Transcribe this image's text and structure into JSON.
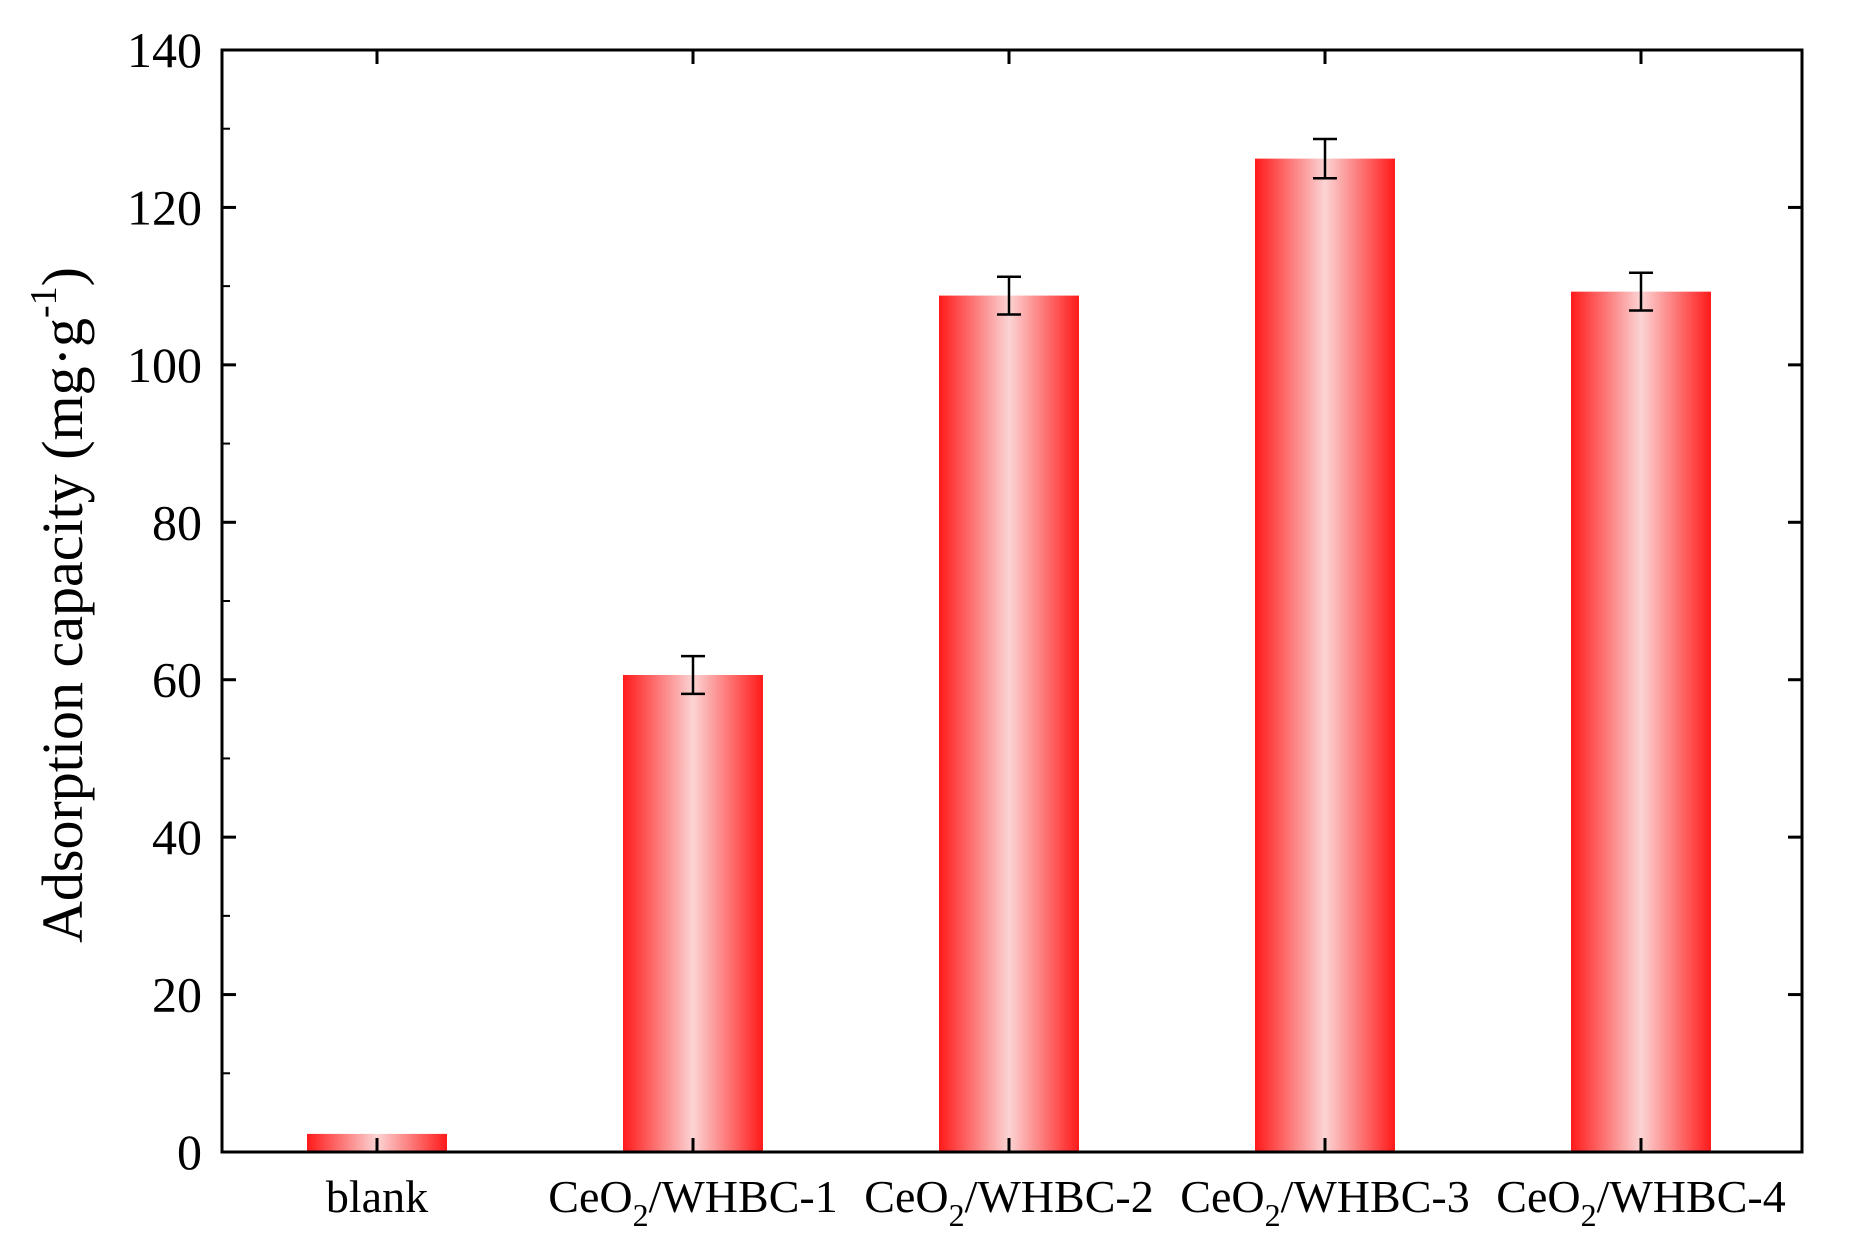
{
  "chart_data": {
    "type": "bar",
    "title": "",
    "xlabel": "",
    "ylabel": "Adsorption capacity (mg·g⁻¹)",
    "ylabel_parts": {
      "main": "Adsorption capacity (mg·g",
      "sup": "-1",
      "close": ")"
    },
    "categories": [
      "blank",
      "CeO2/WHBC-1",
      "CeO2/WHBC-2",
      "CeO2/WHBC-3",
      "CeO2/WHBC-4"
    ],
    "category_labels": [
      {
        "main": "blank",
        "sub": "",
        "rest": ""
      },
      {
        "main": "CeO",
        "sub": "2",
        "rest": "/WHBC-1"
      },
      {
        "main": "CeO",
        "sub": "2",
        "rest": "/WHBC-2"
      },
      {
        "main": "CeO",
        "sub": "2",
        "rest": "/WHBC-3"
      },
      {
        "main": "CeO",
        "sub": "2",
        "rest": "/WHBC-4"
      }
    ],
    "values": [
      2.3,
      60.6,
      108.8,
      126.2,
      109.3
    ],
    "errors": [
      0,
      2.4,
      2.4,
      2.5,
      2.4
    ],
    "ylim": [
      0,
      140
    ],
    "yticks": [
      0,
      20,
      40,
      60,
      80,
      100,
      120,
      140
    ],
    "grid": false,
    "bar_color": "#ff1a1a",
    "bar_highlight": "#fbd4d4"
  }
}
